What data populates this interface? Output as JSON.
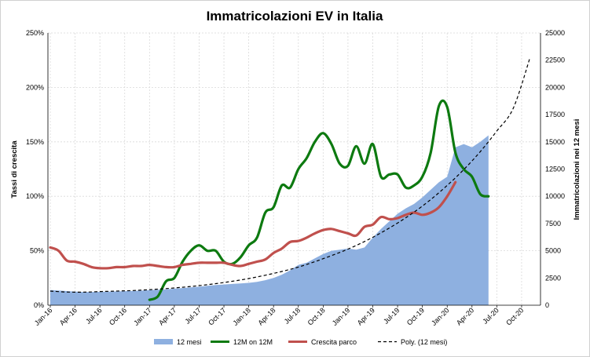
{
  "chart_data": {
    "type": "line",
    "title": "Immatricolazioni EV in Italia",
    "ylabel": "Tassi di crescita",
    "y2label": "Immatricolazioni nei 12 mesi",
    "ylim": [
      0,
      250
    ],
    "y2lim": [
      0,
      25000
    ],
    "y_ticks": [
      "0%",
      "50%",
      "100%",
      "150%",
      "200%",
      "250%"
    ],
    "y2_ticks": [
      "0",
      "2500",
      "5000",
      "7500",
      "10000",
      "12500",
      "15000",
      "17500",
      "20000",
      "22500",
      "25000"
    ],
    "x_ticks": [
      "Jan-16",
      "Apr-16",
      "Jul-16",
      "Oct-16",
      "Jan-17",
      "Apr-17",
      "Jul-17",
      "Oct-17",
      "Jan-18",
      "Apr-18",
      "Jul-18",
      "Oct-18",
      "Jan-19",
      "Apr-19",
      "Jul-19",
      "Oct-19",
      "Jan-20",
      "Apr-20",
      "Jul-20",
      "Oct-20"
    ],
    "x_index_range": [
      0,
      59
    ],
    "grid": true,
    "legend_position": "bottom",
    "series": [
      {
        "name": "12 mesi",
        "type": "area",
        "axis": "right",
        "color": "#8eb0e0",
        "x": [
          0,
          1,
          2,
          3,
          4,
          5,
          6,
          7,
          8,
          9,
          10,
          11,
          12,
          13,
          14,
          15,
          16,
          17,
          18,
          19,
          20,
          21,
          22,
          23,
          24,
          25,
          26,
          27,
          28,
          29,
          30,
          31,
          32,
          33,
          34,
          35,
          36,
          37,
          38,
          39,
          40,
          41,
          42,
          43,
          44,
          45,
          46,
          47,
          48,
          49,
          50,
          51,
          52,
          53
        ],
        "values": [
          1400,
          1350,
          1300,
          1250,
          1220,
          1220,
          1230,
          1250,
          1270,
          1290,
          1310,
          1340,
          1380,
          1420,
          1460,
          1520,
          1580,
          1640,
          1700,
          1780,
          1850,
          1900,
          1950,
          2000,
          2050,
          2150,
          2300,
          2500,
          2800,
          3200,
          3700,
          3900,
          4300,
          4700,
          5000,
          5100,
          5200,
          5100,
          5300,
          6200,
          7000,
          7700,
          8400,
          8900,
          9300,
          9900,
          10600,
          11300,
          11800,
          14500,
          14800,
          14500,
          15000,
          15600
        ]
      },
      {
        "name": "12M on 12M",
        "type": "line",
        "axis": "left",
        "color": "#0d7a10",
        "x": [
          12,
          13,
          14,
          15,
          16,
          17,
          18,
          19,
          20,
          21,
          22,
          23,
          24,
          25,
          26,
          27,
          28,
          29,
          30,
          31,
          32,
          33,
          34,
          35,
          36,
          37,
          38,
          39,
          40,
          41,
          42,
          43,
          44,
          45,
          46,
          47,
          48,
          49,
          50,
          51,
          52,
          53
        ],
        "values": [
          5,
          8,
          22,
          25,
          40,
          50,
          55,
          50,
          50,
          40,
          38,
          44,
          55,
          62,
          85,
          90,
          110,
          108,
          125,
          135,
          150,
          158,
          148,
          130,
          128,
          146,
          130,
          148,
          118,
          120,
          120,
          108,
          110,
          118,
          140,
          183,
          182,
          140,
          125,
          118,
          102,
          100
        ]
      },
      {
        "name": "Crescita parco",
        "type": "line",
        "axis": "left",
        "color": "#c0504d",
        "x": [
          0,
          1,
          2,
          3,
          4,
          5,
          6,
          7,
          8,
          9,
          10,
          11,
          12,
          13,
          14,
          15,
          16,
          17,
          18,
          19,
          20,
          21,
          22,
          23,
          24,
          25,
          26,
          27,
          28,
          29,
          30,
          31,
          32,
          33,
          34,
          35,
          36,
          37,
          38,
          39,
          40,
          41,
          42,
          43,
          44,
          45,
          46,
          47,
          48,
          49
        ],
        "values": [
          53,
          50,
          41,
          40,
          38,
          35,
          34,
          34,
          35,
          35,
          36,
          36,
          37,
          36,
          35,
          35,
          37,
          38,
          39,
          39,
          39,
          39,
          37,
          36,
          38,
          40,
          42,
          48,
          52,
          58,
          59,
          62,
          66,
          69,
          70,
          68,
          66,
          64,
          72,
          74,
          81,
          79,
          80,
          83,
          85,
          83,
          85,
          90,
          100,
          113
        ]
      },
      {
        "name": "Poly. (12 mesi)",
        "type": "line",
        "axis": "right",
        "color": "#000000",
        "dashed": true,
        "x": [
          0,
          2,
          4,
          6,
          8,
          10,
          12,
          14,
          16,
          18,
          20,
          22,
          24,
          26,
          28,
          30,
          32,
          34,
          36,
          38,
          40,
          42,
          44,
          46,
          48,
          50,
          52,
          54,
          56,
          58
        ],
        "values": [
          1300,
          1210,
          1200,
          1250,
          1300,
          1350,
          1430,
          1530,
          1650,
          1800,
          1980,
          2200,
          2450,
          2750,
          3100,
          3500,
          4000,
          4550,
          5150,
          5850,
          6650,
          7550,
          8550,
          9700,
          11000,
          12450,
          14100,
          16000,
          18100,
          22700
        ]
      }
    ]
  }
}
